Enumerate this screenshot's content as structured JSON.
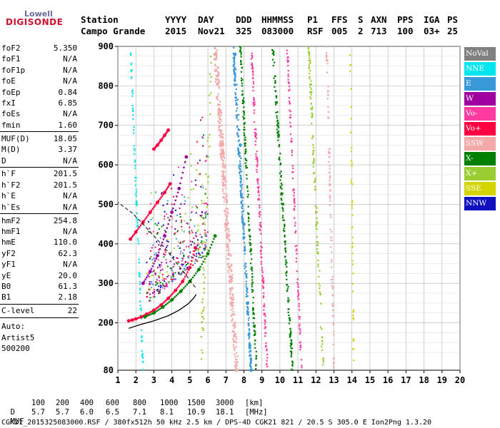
{
  "logo": {
    "top": "Lowell",
    "bottom": "DIGISONDE"
  },
  "header": {
    "columns": [
      {
        "label": "Station",
        "value": "Campo Grande"
      },
      {
        "label": "YYYY",
        "value": "2015"
      },
      {
        "label": "DAY",
        "value": "Nov21"
      },
      {
        "label": "DDD",
        "value": "325"
      },
      {
        "label": "HHMMSS",
        "value": "083000"
      },
      {
        "label": "P1",
        "value": "RSF"
      },
      {
        "label": "FFS",
        "value": "005"
      },
      {
        "label": "S",
        "value": "2"
      },
      {
        "label": "AXN",
        "value": "713"
      },
      {
        "label": "PPS",
        "value": "100"
      },
      {
        "label": "IGA",
        "value": "03+"
      },
      {
        "label": "PS",
        "value": "25"
      }
    ]
  },
  "scaled_params": {
    "group1": [
      {
        "name": "foF2",
        "value": "5.350"
      },
      {
        "name": "foF1",
        "value": "N/A"
      },
      {
        "name": "foF1p",
        "value": "N/A"
      },
      {
        "name": "foE",
        "value": "N/A"
      },
      {
        "name": "foEp",
        "value": "0.84"
      },
      {
        "name": "fxI",
        "value": "6.85"
      },
      {
        "name": "foEs",
        "value": "N/A"
      },
      {
        "name": "fmin",
        "value": "1.60"
      }
    ],
    "group2": [
      {
        "name": "MUF(D)",
        "value": "18.05"
      },
      {
        "name": "M(D)",
        "value": "3.37"
      },
      {
        "name": "D",
        "value": "N/A"
      }
    ],
    "group3": [
      {
        "name": "h`F",
        "value": "201.5"
      },
      {
        "name": "h`F2",
        "value": "201.5"
      },
      {
        "name": "h`E",
        "value": "N/A"
      },
      {
        "name": "h`Es",
        "value": "N/A"
      }
    ],
    "group4": [
      {
        "name": "hmF2",
        "value": "254.8"
      },
      {
        "name": "hmF1",
        "value": "N/A"
      },
      {
        "name": "hmE",
        "value": "110.0"
      },
      {
        "name": "yF2",
        "value": "62.3"
      },
      {
        "name": "yF1",
        "value": "N/A"
      },
      {
        "name": "yE",
        "value": "20.0"
      },
      {
        "name": "B0",
        "value": "61.3"
      },
      {
        "name": "B1",
        "value": "2.18"
      }
    ],
    "group5": [
      {
        "name": "C-level",
        "value": "22"
      }
    ],
    "autoscale": [
      "Auto:",
      "Artist5",
      "500200"
    ]
  },
  "legend": [
    {
      "label": "NoVal",
      "color": "#808080"
    },
    {
      "label": "NNE",
      "color": "#00e5ee"
    },
    {
      "label": "E",
      "color": "#3a9ad9"
    },
    {
      "label": "W",
      "color": "#a000a0"
    },
    {
      "label": "Vo-",
      "color": "#ff3aa0"
    },
    {
      "label": "Vo+",
      "color": "#ff0040"
    },
    {
      "label": "SSW",
      "color": "#f4a8a8"
    },
    {
      "label": "X-",
      "color": "#008000"
    },
    {
      "label": "X+",
      "color": "#9acd32"
    },
    {
      "label": "SSE",
      "color": "#d4d400"
    },
    {
      "label": "NNW",
      "color": "#1010c0"
    }
  ],
  "footer": {
    "d_label": "D",
    "d_values": [
      "100",
      "200",
      "400",
      "600",
      "800",
      "1000",
      "1500",
      "3000",
      "[km]"
    ],
    "muf_label": "MUF",
    "muf_values": [
      "5.7",
      "5.7",
      "6.0",
      "6.5",
      "7.1",
      "8.1",
      "10.9",
      "18.1",
      "[MHz]"
    ],
    "info": "CGK21_2015325083000.RSF / 380fx512h 50 kHz 2.5 km / DPS-4D CGK21 821 / 20.5 S 305.0 E Ion2Png 1.3.20"
  },
  "chart_data": {
    "type": "scatter",
    "title": "",
    "xlabel": "",
    "ylabel": "",
    "xlim": [
      1,
      20
    ],
    "ylim": [
      80,
      900
    ],
    "x_ticks": [
      1,
      2,
      3,
      4,
      5,
      6,
      7,
      8,
      9,
      10,
      11,
      12,
      13,
      14,
      15,
      16,
      17,
      18,
      19,
      20
    ],
    "y_ticks": [
      200,
      300,
      400,
      500,
      600,
      700,
      800,
      900
    ],
    "y_tick_labels": [
      "200",
      "300",
      "400",
      "500",
      "600",
      "700",
      "800",
      "900"
    ],
    "y_bottom_label": "80",
    "grid": true,
    "series": [
      {
        "name": "Vo+",
        "x": [
          1.6,
          1.8,
          2.0,
          2.3,
          2.6,
          3.0,
          3.4,
          3.8,
          4.2,
          4.6,
          5.0,
          5.3
        ],
        "y": [
          205,
          207,
          210,
          215,
          222,
          232,
          245,
          262,
          282,
          305,
          340,
          390
        ]
      },
      {
        "name": "Vo+",
        "x": [
          1.7,
          2.0,
          2.4,
          2.8,
          3.2,
          3.6,
          3.9
        ],
        "y": [
          412,
          430,
          455,
          480,
          505,
          530,
          552
        ]
      },
      {
        "name": "Vo+",
        "x": [
          3.0,
          3.2,
          3.4,
          3.6,
          3.8
        ],
        "y": [
          640,
          650,
          662,
          675,
          688
        ]
      },
      {
        "name": "X-",
        "x": [
          2.5,
          3.0,
          3.5,
          4.0,
          4.5,
          5.0,
          5.5,
          6.0,
          6.4
        ],
        "y": [
          215,
          225,
          240,
          258,
          280,
          305,
          335,
          375,
          420
        ]
      },
      {
        "name": "W",
        "x": [
          2.4,
          2.8,
          3.2,
          3.6,
          4.0,
          4.4,
          4.8
        ],
        "y": [
          300,
          330,
          370,
          420,
          480,
          540,
          620
        ]
      },
      {
        "name": "SSW",
        "x": [
          7.6,
          7.3,
          7.0,
          6.7,
          6.4
        ],
        "y": [
          80,
          250,
          450,
          650,
          880
        ]
      },
      {
        "name": "E",
        "x": [
          8.4,
          8.2,
          8.0,
          7.8,
          7.5
        ],
        "y": [
          80,
          250,
          450,
          650,
          880
        ]
      }
    ]
  }
}
